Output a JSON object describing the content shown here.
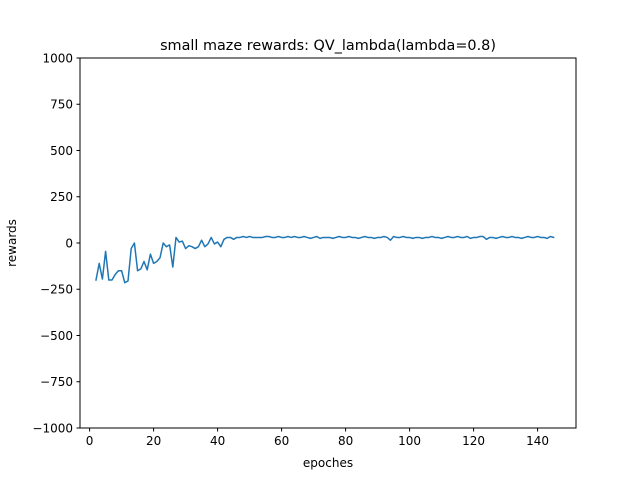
{
  "chart_data": {
    "type": "line",
    "title": "small maze rewards: QV_lambda(lambda=0.8)",
    "xlabel": "epoches",
    "ylabel": "rewards",
    "xlim": [
      -3,
      152
    ],
    "ylim": [
      -1000,
      1000
    ],
    "xticks": [
      0,
      20,
      40,
      60,
      80,
      100,
      120,
      140
    ],
    "yticks": [
      -1000,
      -750,
      -500,
      -250,
      0,
      250,
      500,
      750,
      1000
    ],
    "xtick_labels": [
      "0",
      "20",
      "40",
      "60",
      "80",
      "100",
      "120",
      "140"
    ],
    "ytick_labels": [
      "−1000",
      "−750",
      "−500",
      "−250",
      "0",
      "250",
      "500",
      "750",
      "1000"
    ],
    "grid": false,
    "series": [
      {
        "color": "#1f77b4",
        "x": [
          2,
          3,
          4,
          5,
          6,
          7,
          8,
          9,
          10,
          11,
          12,
          13,
          14,
          15,
          16,
          17,
          18,
          19,
          20,
          21,
          22,
          23,
          24,
          25,
          26,
          27,
          28,
          29,
          30,
          31,
          32,
          33,
          34,
          35,
          36,
          37,
          38,
          39,
          40,
          41,
          42,
          43,
          44,
          45,
          46,
          47,
          48,
          49,
          50,
          51,
          52,
          53,
          54,
          55,
          56,
          57,
          58,
          59,
          60,
          61,
          62,
          63,
          64,
          65,
          66,
          67,
          68,
          69,
          70,
          71,
          72,
          73,
          74,
          75,
          76,
          77,
          78,
          79,
          80,
          81,
          82,
          83,
          84,
          85,
          86,
          87,
          88,
          89,
          90,
          91,
          92,
          93,
          94,
          95,
          96,
          97,
          98,
          99,
          100,
          101,
          102,
          103,
          104,
          105,
          106,
          107,
          108,
          109,
          110,
          111,
          112,
          113,
          114,
          115,
          116,
          117,
          118,
          119,
          120,
          121,
          122,
          123,
          124,
          125,
          126,
          127,
          128,
          129,
          130,
          131,
          132,
          133,
          134,
          135,
          136,
          137,
          138,
          139,
          140,
          141,
          142,
          143,
          144,
          145
        ],
        "y": [
          -200,
          -110,
          -195,
          -45,
          -200,
          -200,
          -170,
          -150,
          -150,
          -215,
          -205,
          -30,
          0,
          -150,
          -140,
          -100,
          -145,
          -60,
          -110,
          -100,
          -80,
          0,
          -20,
          -10,
          -130,
          30,
          5,
          10,
          -30,
          -15,
          -20,
          -30,
          -20,
          15,
          -20,
          -5,
          30,
          -5,
          5,
          -20,
          20,
          30,
          30,
          20,
          30,
          30,
          35,
          30,
          35,
          30,
          30,
          30,
          30,
          35,
          35,
          30,
          30,
          35,
          30,
          30,
          35,
          30,
          35,
          30,
          30,
          35,
          30,
          25,
          30,
          35,
          25,
          30,
          30,
          30,
          25,
          30,
          35,
          30,
          30,
          35,
          30,
          30,
          25,
          30,
          35,
          30,
          30,
          25,
          30,
          30,
          35,
          30,
          15,
          35,
          30,
          30,
          35,
          30,
          30,
          25,
          30,
          30,
          25,
          30,
          30,
          35,
          30,
          30,
          25,
          30,
          35,
          30,
          30,
          35,
          30,
          30,
          35,
          25,
          30,
          30,
          35,
          35,
          20,
          30,
          30,
          25,
          30,
          35,
          30,
          30,
          35,
          30,
          30,
          25,
          30,
          35,
          30,
          30,
          35,
          30,
          30,
          25,
          35,
          30
        ]
      }
    ]
  }
}
